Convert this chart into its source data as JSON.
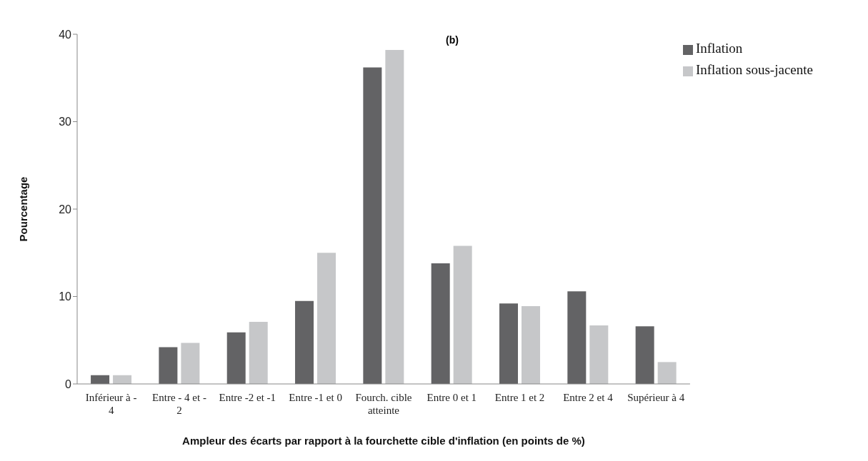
{
  "chart_data": {
    "type": "bar",
    "title": "(b)",
    "xlabel": "Ampleur des écarts par rapport à la fourchette cible d'inflation  (en points de %)",
    "ylabel": "Pourcentage",
    "categories": [
      "Inférieur à - 4",
      "Entre - 4 et - 2",
      "Entre -2 et -1",
      "Entre -1 et 0",
      "Fourch. cible atteinte",
      "Entre 0 et 1",
      "Entre 1 et 2",
      "Entre 2 et 4",
      "Supérieur à 4"
    ],
    "series": [
      {
        "name": "Inflation",
        "color": "#636365",
        "values": [
          1.0,
          4.2,
          5.9,
          9.5,
          36.2,
          13.8,
          9.2,
          10.6,
          6.6
        ]
      },
      {
        "name": "Inflation sous-jacente",
        "color": "#c6c7c9",
        "values": [
          1.0,
          4.7,
          7.1,
          15.0,
          38.2,
          15.8,
          8.9,
          6.7,
          2.5
        ]
      }
    ],
    "ylim": [
      0,
      40
    ],
    "yticks": [
      0,
      10,
      20,
      30,
      40
    ],
    "grid": false,
    "legend": "top right"
  }
}
